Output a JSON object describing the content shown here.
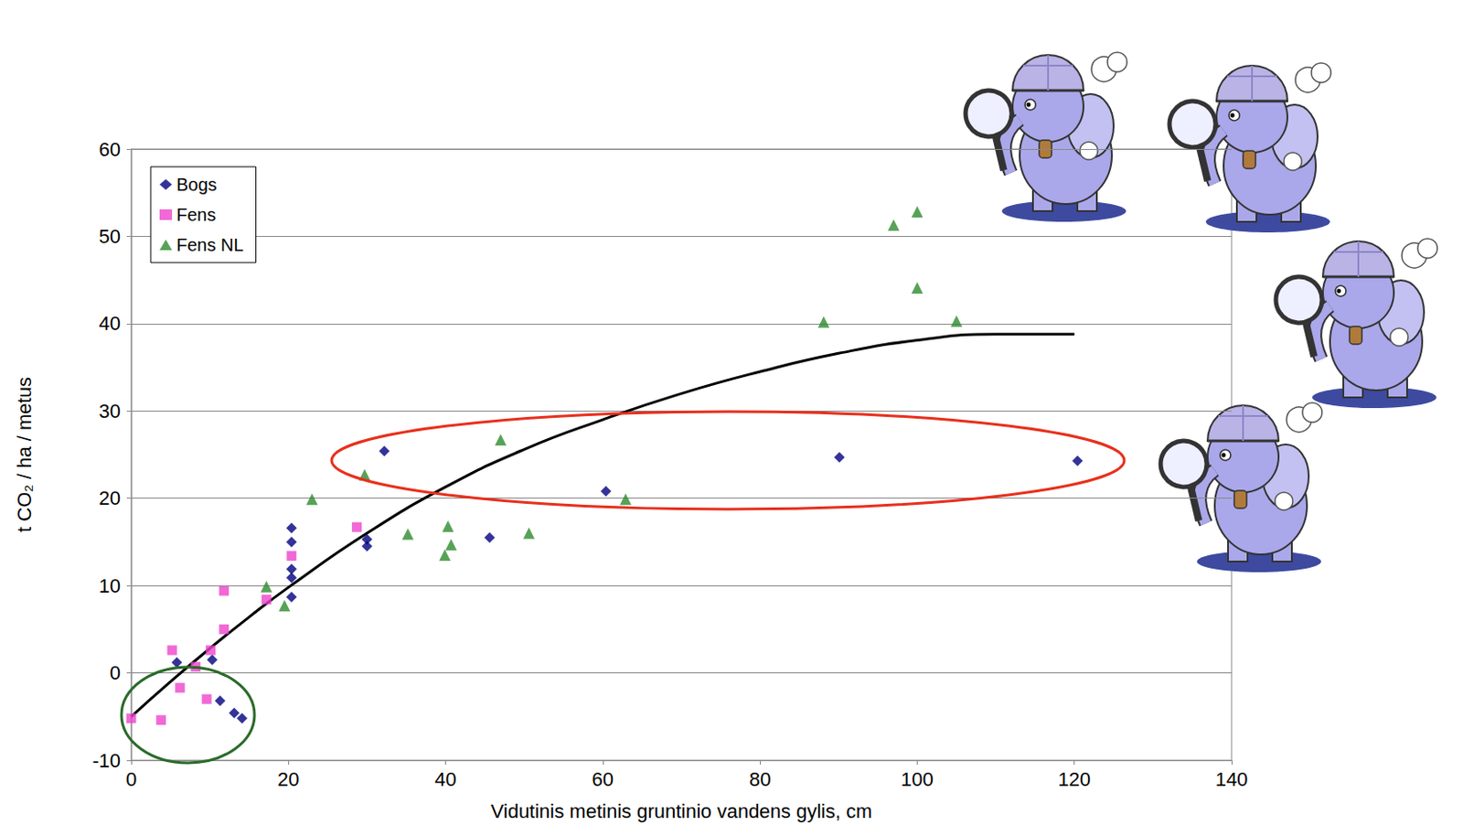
{
  "chart_data": {
    "type": "scatter",
    "x_label": "Vidutinis metinis gruntinio vandens gylis, cm",
    "y_label": "t CO₂ / ha / metus",
    "xlim": [
      0,
      140
    ],
    "xticks": [
      0,
      20,
      40,
      60,
      80,
      100,
      120,
      140
    ],
    "ylim": [
      -10,
      60
    ],
    "yticks": [
      -10,
      0,
      10,
      20,
      30,
      40,
      50,
      60
    ],
    "grid": true,
    "legend": "upper left",
    "series": [
      {
        "name": "Bogs",
        "type": "scatter",
        "marker": "diamond",
        "color": "#000080",
        "x": [
          5.8,
          10.3,
          11.3,
          13.1,
          14.1,
          20.4,
          20.4,
          20.4,
          20.4,
          20.4,
          30,
          30,
          32.2,
          45.6,
          60.4,
          90.1,
          120.4
        ],
        "values": [
          1.2,
          1.5,
          -3.2,
          -4.6,
          -5.2,
          16.6,
          15,
          11.9,
          10.9,
          8.7,
          15.3,
          14.5,
          25.4,
          15.5,
          20.8,
          24.7,
          24.3
        ]
      },
      {
        "name": "Fens",
        "type": "scatter",
        "marker": "square",
        "color": "#ee44cc",
        "x": [
          0,
          3.8,
          5.2,
          6.2,
          8.2,
          10.1,
          9.6,
          11.8,
          11.8,
          17.2,
          20.4,
          28.7
        ],
        "values": [
          -5.2,
          -5.4,
          2.6,
          -1.7,
          0.7,
          2.6,
          -3.0,
          5.0,
          9.4,
          8.4,
          13.4,
          16.7
        ]
      },
      {
        "name": "Fens NL",
        "type": "scatter",
        "marker": "triangle",
        "color": "#2e8b2e",
        "x": [
          17.2,
          19.5,
          23,
          29.7,
          35.2,
          40.3,
          39.9,
          40.7,
          47,
          50.6,
          62.9,
          88.1,
          97,
          100,
          100,
          105
        ],
        "values": [
          9.9,
          7.7,
          19.9,
          22.7,
          15.9,
          16.8,
          13.5,
          14.7,
          26.7,
          16,
          19.9,
          40.2,
          51.3,
          52.8,
          44.1,
          40.3
        ]
      },
      {
        "type": "line",
        "line_style": "solid",
        "color": "#000000",
        "x": [
          0,
          5,
          10,
          15,
          20,
          30,
          40,
          50,
          60,
          70,
          80,
          90,
          100,
          110,
          120
        ],
        "values": [
          -5,
          -1,
          2.8,
          6.4,
          9.8,
          16,
          21.3,
          25.6,
          29,
          32,
          34.5,
          36.6,
          38.1,
          38.8,
          38.8
        ]
      }
    ]
  }
}
